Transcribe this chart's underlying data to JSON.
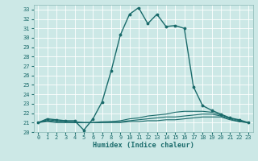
{
  "xlabel": "Humidex (Indice chaleur)",
  "ylabel": "",
  "background_color": "#cce8e6",
  "grid_color": "#b8d8d6",
  "line_color": "#1a6b6b",
  "xlim": [
    -0.5,
    23.5
  ],
  "ylim": [
    20,
    33.5
  ],
  "xticks": [
    0,
    1,
    2,
    3,
    4,
    5,
    6,
    7,
    8,
    9,
    10,
    11,
    12,
    13,
    14,
    15,
    16,
    17,
    18,
    19,
    20,
    21,
    22,
    23
  ],
  "yticks": [
    20,
    21,
    22,
    23,
    24,
    25,
    26,
    27,
    28,
    29,
    30,
    31,
    32,
    33
  ],
  "series": [
    [
      21.0,
      21.4,
      21.3,
      21.2,
      21.2,
      20.2,
      21.4,
      23.2,
      26.5,
      30.3,
      32.5,
      33.2,
      31.5,
      32.5,
      31.2,
      31.3,
      31.0,
      24.8,
      22.8,
      22.3,
      21.9,
      21.5,
      21.3,
      21.0
    ],
    [
      21.0,
      21.3,
      21.2,
      21.1,
      21.1,
      21.0,
      21.0,
      21.1,
      21.1,
      21.2,
      21.4,
      21.5,
      21.7,
      21.8,
      21.9,
      22.1,
      22.2,
      22.2,
      22.2,
      22.1,
      21.8,
      21.5,
      21.2,
      21.0
    ],
    [
      21.0,
      21.2,
      21.1,
      21.1,
      21.0,
      21.0,
      21.0,
      21.0,
      21.1,
      21.1,
      21.2,
      21.3,
      21.4,
      21.5,
      21.6,
      21.6,
      21.7,
      21.8,
      21.9,
      21.9,
      21.7,
      21.4,
      21.1,
      21.0
    ],
    [
      21.0,
      21.1,
      21.0,
      21.0,
      21.0,
      21.0,
      21.0,
      21.0,
      21.0,
      21.0,
      21.1,
      21.1,
      21.2,
      21.2,
      21.3,
      21.3,
      21.4,
      21.5,
      21.6,
      21.6,
      21.6,
      21.3,
      21.1,
      21.0
    ]
  ]
}
